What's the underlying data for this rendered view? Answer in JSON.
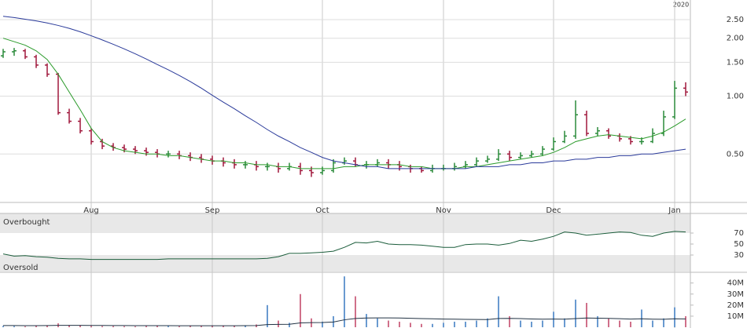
{
  "chart_data": [
    {
      "type": "ohlc",
      "year_label": "2020",
      "log_scale": true,
      "grid": true,
      "up_color": "#2a8a3a",
      "down_color": "#a0183c",
      "categories": [
        null,
        null,
        null,
        null,
        null,
        null,
        null,
        null,
        "Aug",
        null,
        null,
        null,
        null,
        null,
        null,
        null,
        null,
        null,
        null,
        "Sep",
        null,
        null,
        null,
        null,
        null,
        null,
        null,
        null,
        null,
        "Oct",
        null,
        null,
        null,
        null,
        null,
        null,
        null,
        null,
        null,
        null,
        "Nov",
        null,
        null,
        null,
        null,
        null,
        null,
        null,
        null,
        null,
        "Dec",
        null,
        null,
        null,
        null,
        null,
        null,
        null,
        null,
        null,
        null,
        "Jan",
        null
      ],
      "open": [
        1.62,
        1.7,
        1.72,
        1.6,
        1.45,
        1.3,
        0.82,
        0.74,
        0.66,
        0.58,
        0.55,
        0.54,
        0.53,
        0.52,
        0.51,
        0.5,
        0.5,
        0.49,
        0.48,
        0.47,
        0.46,
        0.45,
        0.44,
        0.44,
        0.43,
        0.43,
        0.42,
        0.43,
        0.41,
        0.4,
        0.41,
        0.45,
        0.46,
        0.44,
        0.44,
        0.45,
        0.44,
        0.43,
        0.42,
        0.41,
        0.42,
        0.42,
        0.43,
        0.44,
        0.46,
        0.47,
        0.5,
        0.48,
        0.49,
        0.5,
        0.53,
        0.58,
        0.62,
        0.8,
        0.64,
        0.66,
        0.62,
        0.6,
        0.58,
        0.58,
        0.64,
        0.78,
        1.1
      ],
      "high": [
        1.76,
        1.78,
        1.76,
        1.64,
        1.48,
        1.32,
        0.86,
        0.77,
        0.68,
        0.6,
        0.57,
        0.56,
        0.55,
        0.54,
        0.53,
        0.52,
        0.52,
        0.51,
        0.5,
        0.49,
        0.48,
        0.47,
        0.46,
        0.46,
        0.45,
        0.45,
        0.45,
        0.45,
        0.43,
        0.43,
        0.47,
        0.48,
        0.48,
        0.46,
        0.47,
        0.47,
        0.46,
        0.44,
        0.43,
        0.44,
        0.44,
        0.45,
        0.46,
        0.48,
        0.49,
        0.53,
        0.52,
        0.51,
        0.52,
        0.55,
        0.61,
        0.66,
        0.95,
        0.84,
        0.69,
        0.68,
        0.64,
        0.62,
        0.61,
        0.68,
        0.84,
        1.2,
        1.18
      ],
      "low": [
        1.58,
        1.62,
        1.56,
        1.4,
        1.26,
        0.8,
        0.72,
        0.64,
        0.56,
        0.53,
        0.52,
        0.51,
        0.5,
        0.49,
        0.48,
        0.48,
        0.47,
        0.46,
        0.45,
        0.44,
        0.43,
        0.42,
        0.42,
        0.41,
        0.41,
        0.4,
        0.41,
        0.39,
        0.38,
        0.39,
        0.4,
        0.44,
        0.43,
        0.42,
        0.43,
        0.42,
        0.41,
        0.4,
        0.4,
        0.4,
        0.41,
        0.41,
        0.42,
        0.43,
        0.45,
        0.46,
        0.46,
        0.47,
        0.48,
        0.49,
        0.52,
        0.57,
        0.6,
        0.62,
        0.62,
        0.6,
        0.58,
        0.56,
        0.56,
        0.57,
        0.62,
        0.76,
        1.0
      ],
      "close": [
        1.7,
        1.72,
        1.6,
        1.45,
        1.3,
        0.82,
        0.74,
        0.66,
        0.58,
        0.55,
        0.54,
        0.53,
        0.52,
        0.51,
        0.5,
        0.5,
        0.49,
        0.48,
        0.47,
        0.46,
        0.45,
        0.44,
        0.44,
        0.43,
        0.43,
        0.42,
        0.43,
        0.41,
        0.4,
        0.41,
        0.45,
        0.46,
        0.44,
        0.44,
        0.45,
        0.44,
        0.43,
        0.42,
        0.41,
        0.42,
        0.42,
        0.43,
        0.44,
        0.46,
        0.47,
        0.5,
        0.48,
        0.49,
        0.5,
        0.53,
        0.58,
        0.62,
        0.8,
        0.64,
        0.66,
        0.62,
        0.6,
        0.58,
        0.58,
        0.64,
        0.78,
        1.1,
        1.05
      ],
      "overlays": [
        {
          "color": "#2a9a2a",
          "values": [
            2.0,
            1.92,
            1.84,
            1.72,
            1.55,
            1.3,
            1.05,
            0.85,
            0.68,
            0.58,
            0.54,
            0.52,
            0.51,
            0.5,
            0.5,
            0.49,
            0.49,
            0.48,
            0.47,
            0.46,
            0.46,
            0.45,
            0.45,
            0.44,
            0.44,
            0.43,
            0.43,
            0.42,
            0.42,
            0.42,
            0.42,
            0.43,
            0.43,
            0.44,
            0.44,
            0.44,
            0.44,
            0.43,
            0.43,
            0.42,
            0.42,
            0.42,
            0.43,
            0.43,
            0.44,
            0.45,
            0.46,
            0.47,
            0.48,
            0.49,
            0.51,
            0.54,
            0.58,
            0.6,
            0.62,
            0.63,
            0.62,
            0.61,
            0.6,
            0.62,
            0.65,
            0.7,
            0.76
          ]
        },
        {
          "color": "#2a3a9a",
          "values": [
            2.6,
            2.56,
            2.51,
            2.46,
            2.4,
            2.33,
            2.25,
            2.16,
            2.06,
            1.96,
            1.86,
            1.76,
            1.66,
            1.56,
            1.46,
            1.37,
            1.28,
            1.19,
            1.1,
            1.01,
            0.93,
            0.86,
            0.79,
            0.73,
            0.67,
            0.62,
            0.58,
            0.54,
            0.51,
            0.48,
            0.46,
            0.45,
            0.44,
            0.43,
            0.43,
            0.42,
            0.42,
            0.42,
            0.42,
            0.42,
            0.42,
            0.42,
            0.42,
            0.43,
            0.43,
            0.43,
            0.44,
            0.44,
            0.45,
            0.45,
            0.46,
            0.46,
            0.47,
            0.47,
            0.48,
            0.48,
            0.49,
            0.49,
            0.5,
            0.5,
            0.51,
            0.52,
            0.53
          ]
        }
      ],
      "ylim": [
        0.28,
        3.16
      ],
      "yticks": [
        {
          "value": 2.5,
          "label": "2.50"
        },
        {
          "value": 2.0,
          "label": "2.00"
        },
        {
          "value": 1.5,
          "label": "1.50"
        },
        {
          "value": 1.0,
          "label": "1.00"
        },
        {
          "value": 0.5,
          "label": "0.50"
        }
      ]
    },
    {
      "type": "line",
      "color": "#1a5c3a",
      "band_color": "#e8e8e8",
      "upper_label": "Overbought",
      "lower_label": "Oversold",
      "overbought": 70,
      "oversold": 30,
      "values": [
        32,
        28,
        29,
        27,
        26,
        24,
        23,
        23,
        22,
        22,
        22,
        22,
        22,
        22,
        22,
        23,
        23,
        23,
        23,
        23,
        23,
        23,
        23,
        23,
        24,
        27,
        33,
        33,
        34,
        35,
        37,
        44,
        53,
        52,
        55,
        50,
        49,
        49,
        48,
        46,
        44,
        44,
        49,
        50,
        50,
        48,
        51,
        57,
        55,
        59,
        64,
        72,
        70,
        66,
        68,
        70,
        72,
        71,
        66,
        64,
        70,
        73,
        72
      ],
      "ylim": [
        0,
        100
      ],
      "yticks": [
        70,
        50,
        30
      ]
    },
    {
      "type": "bar",
      "up_color": "#6a9ad0",
      "down_color": "#d0708a",
      "ma_color": "#223344",
      "values": [
        1.2,
        1.0,
        0.8,
        1.5,
        1.8,
        3.5,
        2.0,
        1.5,
        1.2,
        1.0,
        1.0,
        0.9,
        0.8,
        1.0,
        1.2,
        1.0,
        0.9,
        1.1,
        1.0,
        1.3,
        1.5,
        1.2,
        1.8,
        2.5,
        20,
        6,
        4,
        30,
        8,
        5,
        10,
        46,
        28,
        12,
        8,
        6,
        5,
        4,
        3,
        3,
        4,
        5,
        5,
        6,
        8,
        28,
        10,
        6,
        5,
        6,
        14,
        8,
        25,
        22,
        10,
        8,
        6,
        5,
        16,
        6,
        8,
        18,
        10
      ],
      "ma_values": [
        1.5,
        1.5,
        1.4,
        1.4,
        1.5,
        1.7,
        1.7,
        1.7,
        1.6,
        1.6,
        1.5,
        1.5,
        1.4,
        1.4,
        1.4,
        1.4,
        1.3,
        1.3,
        1.3,
        1.3,
        1.3,
        1.3,
        1.4,
        1.5,
        2.4,
        2.6,
        2.7,
        3.9,
        4.2,
        4.3,
        4.7,
        6.7,
        7.9,
        8.3,
        8.4,
        8.4,
        8.3,
        8.1,
        7.8,
        7.6,
        7.4,
        7.3,
        7.1,
        7.0,
        6.9,
        7.9,
        8.0,
        7.8,
        7.5,
        7.3,
        7.4,
        7.3,
        7.8,
        8.3,
        8.2,
        8.0,
        7.7,
        7.4,
        7.6,
        7.3,
        7.2,
        7.6,
        7.5
      ],
      "ylim": [
        0,
        49
      ],
      "yticks": [
        {
          "value": 10,
          "label": "10M"
        },
        {
          "value": 20,
          "label": "20M"
        },
        {
          "value": 30,
          "label": "30M"
        },
        {
          "value": 40,
          "label": "40M"
        }
      ]
    }
  ]
}
